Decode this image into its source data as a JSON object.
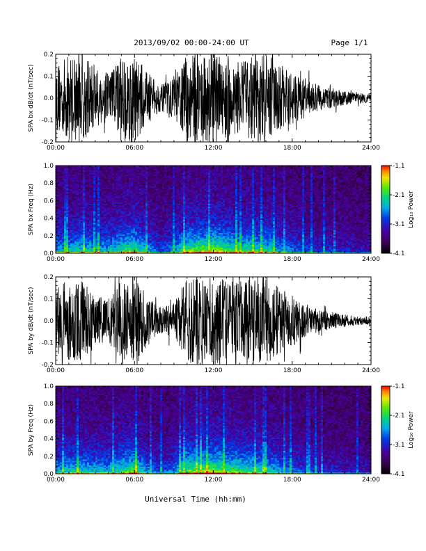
{
  "header": {
    "title": "2013/09/02  00:00-24:00 UT",
    "page": "Page 1/1"
  },
  "footer": {
    "xlabel": "Universal Time (hh:mm)"
  },
  "chart_data": [
    {
      "type": "line",
      "panel": "waveform",
      "ylabel": "SPA bx dB/dt (nT/sec)",
      "xlim": [
        0,
        24
      ],
      "ylim": [
        -0.2,
        0.2
      ],
      "xticks": [
        "00:00",
        "06:00",
        "12:00",
        "18:00",
        "24:00"
      ],
      "yticks": [
        "-0.2",
        "-0.1",
        "0.0",
        "0.1",
        "0.2"
      ],
      "envelope": {
        "x_hours": [
          0,
          1,
          2,
          3,
          4,
          5,
          6,
          7,
          8,
          9,
          10,
          11,
          12,
          13,
          14,
          15,
          16,
          17,
          18,
          19,
          20,
          21,
          22,
          23,
          24
        ],
        "amplitude": [
          0.15,
          0.2,
          0.2,
          0.14,
          0.12,
          0.2,
          0.2,
          0.12,
          0.06,
          0.09,
          0.2,
          0.2,
          0.2,
          0.2,
          0.16,
          0.2,
          0.2,
          0.16,
          0.12,
          0.09,
          0.06,
          0.05,
          0.03,
          0.025,
          0.02
        ]
      }
    },
    {
      "type": "heatmap",
      "panel": "spectrogram",
      "ylabel": "SPA bx Freq (Hz)",
      "xlim": [
        0,
        24
      ],
      "ylim": [
        0,
        1.0
      ],
      "xticks": [
        "00:00",
        "06:00",
        "12:00",
        "18:00",
        "24:00"
      ],
      "yticks": [
        "0.0",
        "0.2",
        "0.4",
        "0.6",
        "0.8",
        "1.0"
      ],
      "colorbar": {
        "label": "Log₁₀ Power",
        "range": [
          -4.1,
          -1.1
        ],
        "ticks": [
          "-1.1",
          "-2.1",
          "-3.1",
          "-4.1"
        ]
      },
      "activity_hours": [
        0,
        1,
        2,
        3,
        4,
        5,
        6,
        7,
        8,
        9,
        10,
        11,
        12,
        13,
        14,
        15,
        16,
        17,
        18,
        19,
        20,
        21,
        22,
        23,
        24
      ],
      "activity_level": [
        0.55,
        0.6,
        0.7,
        0.6,
        0.6,
        0.75,
        0.85,
        0.55,
        0.35,
        0.5,
        0.85,
        0.9,
        0.95,
        0.85,
        0.75,
        0.75,
        0.7,
        0.55,
        0.45,
        0.35,
        0.3,
        0.3,
        0.25,
        0.2,
        0.2
      ]
    },
    {
      "type": "line",
      "panel": "waveform",
      "ylabel": "SPA by dB/dt (nT/sec)",
      "xlim": [
        0,
        24
      ],
      "ylim": [
        -0.2,
        0.2
      ],
      "xticks": [
        "00:00",
        "06:00",
        "12:00",
        "18:00",
        "24:00"
      ],
      "yticks": [
        "-0.2",
        "-0.1",
        "0.0",
        "0.1",
        "0.2"
      ],
      "envelope": {
        "x_hours": [
          0,
          1,
          2,
          3,
          4,
          5,
          6,
          7,
          8,
          9,
          10,
          11,
          12,
          13,
          14,
          15,
          16,
          17,
          18,
          19,
          20,
          21,
          22,
          23,
          24
        ],
        "amplitude": [
          0.14,
          0.2,
          0.18,
          0.12,
          0.1,
          0.2,
          0.2,
          0.11,
          0.06,
          0.08,
          0.2,
          0.2,
          0.2,
          0.2,
          0.17,
          0.2,
          0.2,
          0.15,
          0.12,
          0.08,
          0.05,
          0.04,
          0.03,
          0.02,
          0.02
        ]
      }
    },
    {
      "type": "heatmap",
      "panel": "spectrogram",
      "ylabel": "SPA by Freq (Hz)",
      "xlim": [
        0,
        24
      ],
      "ylim": [
        0,
        1.0
      ],
      "xticks": [
        "00:00",
        "06:00",
        "12:00",
        "18:00",
        "24:00"
      ],
      "yticks": [
        "0.0",
        "0.2",
        "0.4",
        "0.6",
        "0.8",
        "1.0"
      ],
      "colorbar": {
        "label": "Log₁₀ Power",
        "range": [
          -4.1,
          -1.1
        ],
        "ticks": [
          "-1.1",
          "-2.1",
          "-3.1",
          "-4.1"
        ]
      },
      "activity_hours": [
        0,
        1,
        2,
        3,
        4,
        5,
        6,
        7,
        8,
        9,
        10,
        11,
        12,
        13,
        14,
        15,
        16,
        17,
        18,
        19,
        20,
        21,
        22,
        23,
        24
      ],
      "activity_level": [
        0.6,
        0.65,
        0.7,
        0.6,
        0.6,
        0.75,
        0.85,
        0.5,
        0.35,
        0.5,
        0.9,
        0.9,
        0.95,
        0.85,
        0.8,
        0.75,
        0.7,
        0.55,
        0.45,
        0.35,
        0.3,
        0.25,
        0.25,
        0.2,
        0.2
      ]
    }
  ]
}
